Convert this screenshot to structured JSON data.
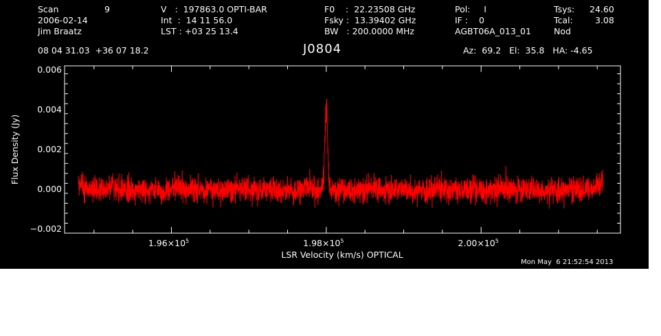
{
  "header": {
    "col1": {
      "scan_label": "Scan",
      "scan_value": "9",
      "date": "2006-02-14",
      "observer": "Jim Braatz"
    },
    "col2": {
      "v_line": "V   :  197863.0 OPTI-BAR",
      "int_line": "Int  :  14 11 56.0",
      "lst_line": "LST : +03 25 13.4"
    },
    "col3": {
      "f0_line": "F0    :  22.23508 GHz",
      "fsky_line": "Fsky :  13.39402 GHz",
      "bw_line": "BW   : 200.0000 MHz"
    },
    "col4": {
      "pol_line": "Pol:     I",
      "if_line": "IF :    0",
      "project": "AGBT06A_013_01"
    },
    "col5": {
      "tsys_label": "Tsys:",
      "tsys_value": "24.60",
      "tcal_label": "Tcal:",
      "tcal_value": "3.08",
      "mode": "Nod"
    },
    "coords": "08 04 31.03  +36 07 18.2",
    "source": "J0804",
    "pointing": "Az:  69.2   El:  35.8   HA: -4.65"
  },
  "timestamp": "Mon May  6 21:52:54 2013",
  "colors": {
    "background": "#000000",
    "axes": "#ffffff",
    "trace": "#ff0000"
  },
  "chart_data": {
    "type": "line",
    "title": "J0804",
    "xlabel": "LSR Velocity (km/s) OPTICAL",
    "ylabel": "Flux Density (Jy)",
    "xlim": [
      194620,
      201800
    ],
    "ylim": [
      -0.0022,
      0.0062
    ],
    "x_ticks": [
      {
        "value": 196000,
        "label": "1.96×10",
        "exp": "5"
      },
      {
        "value": 198000,
        "label": "1.98×10",
        "exp": "5"
      },
      {
        "value": 200000,
        "label": "2.00×10",
        "exp": "5"
      }
    ],
    "y_ticks": [
      {
        "value": -0.002,
        "label": "−0.002"
      },
      {
        "value": 0.0,
        "label": "0.000"
      },
      {
        "value": 0.002,
        "label": "0.002"
      },
      {
        "value": 0.004,
        "label": "0.004"
      },
      {
        "value": 0.006,
        "label": "0.006"
      }
    ],
    "grid": false,
    "series": [
      {
        "x_start": 194800,
        "x_end": 201570,
        "noise_rms": 0.00035,
        "line_center": 198000,
        "line_peak": 0.0043,
        "line_width": 18,
        "edge_rise_left": 0.0006,
        "edge_rise_right": 0.0008
      }
    ]
  }
}
